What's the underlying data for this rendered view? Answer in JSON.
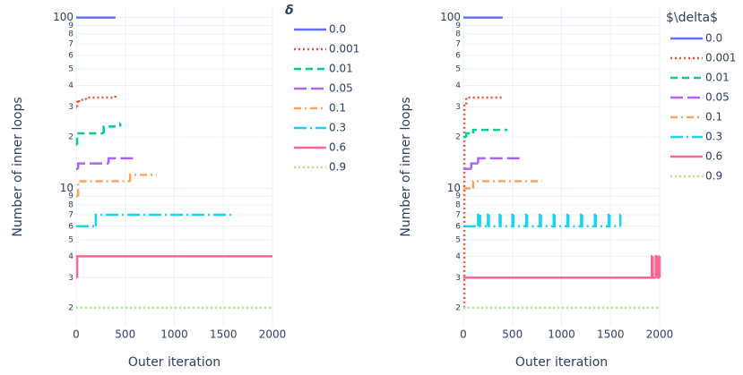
{
  "chart_data": [
    {
      "type": "line",
      "legend_title": "δ",
      "x_label": "Outer iteration",
      "y_label": "Number of inner loops",
      "log_y": true,
      "grid": true,
      "xlim": [
        0,
        2000
      ],
      "ylim": [
        1.55,
        115
      ],
      "xticks": [
        0,
        500,
        1000,
        1500,
        2000
      ],
      "yticks": [
        100,
        {
          "value": 90,
          "label": "9"
        },
        {
          "value": 80,
          "label": "8"
        },
        {
          "value": 70,
          "label": "7"
        },
        {
          "value": 60,
          "label": "6"
        },
        {
          "value": 50,
          "label": "5"
        },
        {
          "value": 40,
          "label": "4"
        },
        {
          "value": 30,
          "label": "3"
        },
        {
          "value": 20,
          "label": "2"
        },
        10,
        9,
        8,
        7,
        6,
        5,
        4,
        3,
        2
      ],
      "series": [
        {
          "name": "0.0",
          "color": "#636efa",
          "dash": "solid",
          "x": [
            0,
            400
          ],
          "values": [
            100,
            100
          ]
        },
        {
          "name": "0.001",
          "color": "#EF553B",
          "dash": "dot",
          "x": [
            0,
            10,
            30,
            100,
            400
          ],
          "values": [
            30,
            32,
            33,
            34,
            35
          ]
        },
        {
          "name": "0.01",
          "color": "#00cc96",
          "dash": "dash",
          "x": [
            0,
            10,
            280,
            450
          ],
          "values": [
            18,
            21,
            23,
            24
          ]
        },
        {
          "name": "0.05",
          "color": "#ab63fa",
          "dash": "longdash",
          "x": [
            0,
            20,
            330,
            600
          ],
          "values": [
            13,
            14,
            15,
            15
          ]
        },
        {
          "name": "0.1",
          "color": "#FFA15A",
          "dash": "dashdot",
          "x": [
            0,
            20,
            550,
            820
          ],
          "values": [
            9,
            11,
            12,
            12
          ]
        },
        {
          "name": "0.3",
          "color": "#19d3f3",
          "dash": "longdashdot",
          "x": [
            0,
            200,
            1600
          ],
          "values": [
            6,
            7,
            7
          ]
        },
        {
          "name": "0.6",
          "color": "#FF6692",
          "dash": "solid",
          "x": [
            0,
            10,
            2000
          ],
          "values": [
            3,
            4,
            4
          ]
        },
        {
          "name": "0.9",
          "color": "#B6E880",
          "dash": "dot",
          "x": [
            0,
            2000
          ],
          "values": [
            2,
            2
          ]
        }
      ]
    },
    {
      "type": "line",
      "legend_title": "$\\delta$",
      "x_label": "Outer iteration",
      "y_label": "Number of inner loops",
      "log_y": true,
      "grid": true,
      "xlim": [
        0,
        2000
      ],
      "ylim": [
        1.55,
        115
      ],
      "xticks": [
        0,
        500,
        1000,
        1500,
        2000
      ],
      "yticks": [
        100,
        {
          "value": 90,
          "label": "9"
        },
        {
          "value": 80,
          "label": "8"
        },
        {
          "value": 70,
          "label": "7"
        },
        {
          "value": 60,
          "label": "6"
        },
        {
          "value": 50,
          "label": "5"
        },
        {
          "value": 40,
          "label": "4"
        },
        {
          "value": 30,
          "label": "3"
        },
        {
          "value": 20,
          "label": "2"
        },
        10,
        9,
        8,
        7,
        6,
        5,
        4,
        3,
        2
      ],
      "series": [
        {
          "name": "0.0",
          "color": "#636efa",
          "dash": "solid",
          "x": [
            0,
            400
          ],
          "values": [
            100,
            100
          ]
        },
        {
          "name": "0.001",
          "color": "#EF553B",
          "dash": "dot",
          "x": [
            0,
            10,
            30,
            400
          ],
          "values": [
            2,
            31,
            34,
            34
          ]
        },
        {
          "name": "0.01",
          "color": "#00cc96",
          "dash": "dash",
          "x": [
            0,
            30,
            100,
            450
          ],
          "values": [
            20,
            21,
            22,
            22
          ]
        },
        {
          "name": "0.05",
          "color": "#ab63fa",
          "dash": "longdash",
          "x": [
            0,
            80,
            150,
            600
          ],
          "values": [
            13,
            14,
            15,
            15
          ]
        },
        {
          "name": "0.1",
          "color": "#FFA15A",
          "dash": "dashdot",
          "x": [
            0,
            100,
            800
          ],
          "values": [
            10,
            11,
            11
          ]
        },
        {
          "name": "0.3",
          "color": "#19d3f3",
          "dash": "longdashdot",
          "x": [
            0,
            150,
            170,
            250,
            260,
            370,
            380,
            500,
            510,
            640,
            650,
            780,
            790,
            920,
            930,
            1060,
            1070,
            1200,
            1210,
            1340,
            1350,
            1480,
            1490,
            1600
          ],
          "values": [
            6,
            7,
            6,
            7,
            6,
            7,
            6,
            7,
            6,
            7,
            6,
            7,
            6,
            7,
            6,
            7,
            6,
            7,
            6,
            7,
            6,
            7,
            6,
            7
          ]
        },
        {
          "name": "0.6",
          "color": "#FF6692",
          "dash": "solid",
          "x": [
            0,
            1920,
            1930,
            1960,
            1980,
            2000
          ],
          "values": [
            3,
            4,
            3,
            4,
            3,
            4
          ]
        },
        {
          "name": "0.9",
          "color": "#B6E880",
          "dash": "dot",
          "x": [
            0,
            2000
          ],
          "values": [
            2,
            2
          ]
        }
      ]
    }
  ]
}
